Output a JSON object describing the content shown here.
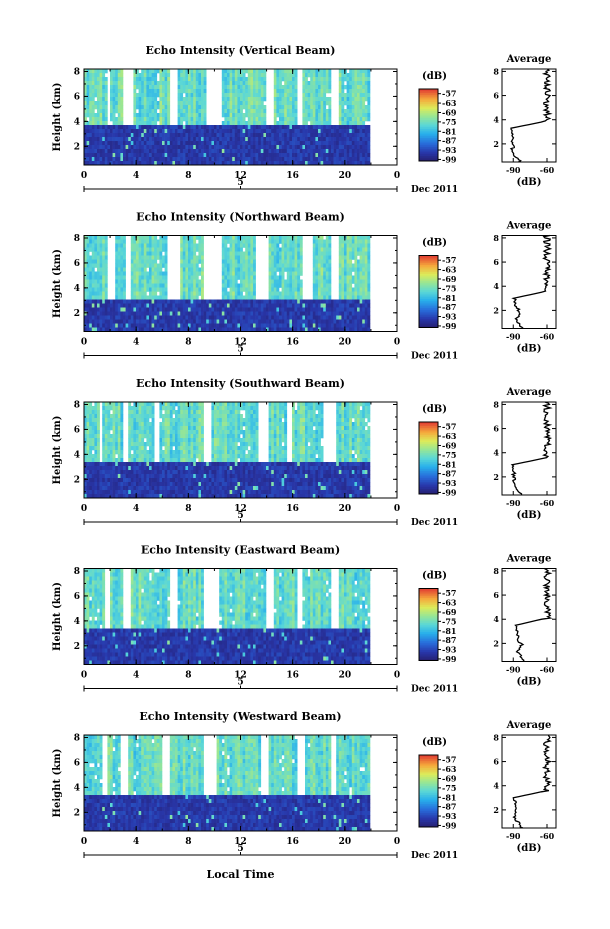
{
  "figure": {
    "xlabel": "Local Time",
    "month_label": "Dec 2011",
    "ylabel": "Height (km)",
    "colorbar_unit": "(dB)",
    "avg_title": "Average",
    "avg_xlabel": "(dB)"
  },
  "chart_data": [
    {
      "type": "heatmap",
      "title": "Echo Intensity (Vertical Beam)",
      "xlabel": "Local Time",
      "ylabel": "Height (km)",
      "x_ticks": [
        "0",
        "4",
        "8",
        "12",
        "16",
        "20",
        "0"
      ],
      "x_range_hours": [
        0,
        24
      ],
      "day_tick": "5",
      "y_ticks": [
        "2",
        "4",
        "6",
        "8"
      ],
      "ylim_km": [
        0.5,
        8.2
      ],
      "colorbar": {
        "label": "(dB)",
        "ticks": [
          "-57",
          "-63",
          "-69",
          "-75",
          "-81",
          "-87",
          "-93",
          "-99"
        ],
        "range": [
          -100,
          -54
        ]
      },
      "data_until_hour": 21.8,
      "boundary_km": 3.6,
      "average_profile": {
        "title": "Average",
        "xlabel": "(dB)",
        "x_ticks": [
          "-90",
          "-60"
        ],
        "y_ticks": [
          "2",
          "4",
          "6",
          "8"
        ],
        "surface_db": -92,
        "upper_db": -60,
        "transition_km": 3.6
      }
    },
    {
      "type": "heatmap",
      "title": "Echo Intensity (Northward Beam)",
      "xlabel": "Local Time",
      "ylabel": "Height (km)",
      "x_ticks": [
        "0",
        "4",
        "8",
        "12",
        "16",
        "20",
        "0"
      ],
      "x_range_hours": [
        0,
        24
      ],
      "day_tick": "5",
      "y_ticks": [
        "2",
        "4",
        "6",
        "8"
      ],
      "ylim_km": [
        0.5,
        8.2
      ],
      "colorbar": {
        "label": "(dB)",
        "ticks": [
          "-57",
          "-63",
          "-69",
          "-75",
          "-81",
          "-87",
          "-93",
          "-99"
        ],
        "range": [
          -100,
          -54
        ]
      },
      "data_until_hour": 21.8,
      "boundary_km": 3.1,
      "average_profile": {
        "title": "Average",
        "xlabel": "(dB)",
        "x_ticks": [
          "-90",
          "-60"
        ],
        "y_ticks": [
          "2",
          "4",
          "6",
          "8"
        ],
        "surface_db": -90,
        "upper_db": -60,
        "transition_km": 3.3
      }
    },
    {
      "type": "heatmap",
      "title": "Echo Intensity (Southward Beam)",
      "xlabel": "Local Time",
      "ylabel": "Height (km)",
      "x_ticks": [
        "0",
        "4",
        "8",
        "12",
        "16",
        "20",
        "0"
      ],
      "x_range_hours": [
        0,
        24
      ],
      "day_tick": "5",
      "y_ticks": [
        "2",
        "4",
        "6",
        "8"
      ],
      "ylim_km": [
        0.5,
        8.2
      ],
      "colorbar": {
        "label": "(dB)",
        "ticks": [
          "-57",
          "-63",
          "-69",
          "-75",
          "-81",
          "-87",
          "-93",
          "-99"
        ],
        "range": [
          -100,
          -54
        ]
      },
      "data_until_hour": 21.8,
      "boundary_km": 3.3,
      "average_profile": {
        "title": "Average",
        "xlabel": "(dB)",
        "x_ticks": [
          "-90",
          "-60"
        ],
        "y_ticks": [
          "2",
          "4",
          "6",
          "8"
        ],
        "surface_db": -91,
        "upper_db": -60,
        "transition_km": 3.3
      }
    },
    {
      "type": "heatmap",
      "title": "Echo Intensity (Eastward Beam)",
      "xlabel": "Local Time",
      "ylabel": "Height (km)",
      "x_ticks": [
        "0",
        "4",
        "8",
        "12",
        "16",
        "20",
        "0"
      ],
      "x_range_hours": [
        0,
        24
      ],
      "day_tick": "5",
      "y_ticks": [
        "2",
        "4",
        "6",
        "8"
      ],
      "ylim_km": [
        0.5,
        8.2
      ],
      "colorbar": {
        "label": "(dB)",
        "ticks": [
          "-57",
          "-63",
          "-69",
          "-75",
          "-81",
          "-87",
          "-93",
          "-99"
        ],
        "range": [
          -100,
          -54
        ]
      },
      "data_until_hour": 21.8,
      "boundary_km": 3.5,
      "average_profile": {
        "title": "Average",
        "xlabel": "(dB)",
        "x_ticks": [
          "-90",
          "-60"
        ],
        "y_ticks": [
          "2",
          "4",
          "6",
          "8"
        ],
        "surface_db": -88,
        "upper_db": -60,
        "transition_km": 3.8
      }
    },
    {
      "type": "heatmap",
      "title": "Echo Intensity (Westward Beam)",
      "xlabel": "Local Time",
      "ylabel": "Height (km)",
      "x_ticks": [
        "0",
        "4",
        "8",
        "12",
        "16",
        "20",
        "0"
      ],
      "x_range_hours": [
        0,
        24
      ],
      "day_tick": "5",
      "y_ticks": [
        "2",
        "4",
        "6",
        "8"
      ],
      "ylim_km": [
        0.5,
        8.2
      ],
      "colorbar": {
        "label": "(dB)",
        "ticks": [
          "-57",
          "-63",
          "-69",
          "-75",
          "-81",
          "-87",
          "-93",
          "-99"
        ],
        "range": [
          -100,
          -54
        ]
      },
      "data_until_hour": 21.8,
      "boundary_km": 3.3,
      "average_profile": {
        "title": "Average",
        "xlabel": "(dB)",
        "x_ticks": [
          "-90",
          "-60"
        ],
        "y_ticks": [
          "2",
          "4",
          "6",
          "8"
        ],
        "surface_db": -90,
        "upper_db": -60,
        "transition_km": 3.3
      }
    }
  ]
}
